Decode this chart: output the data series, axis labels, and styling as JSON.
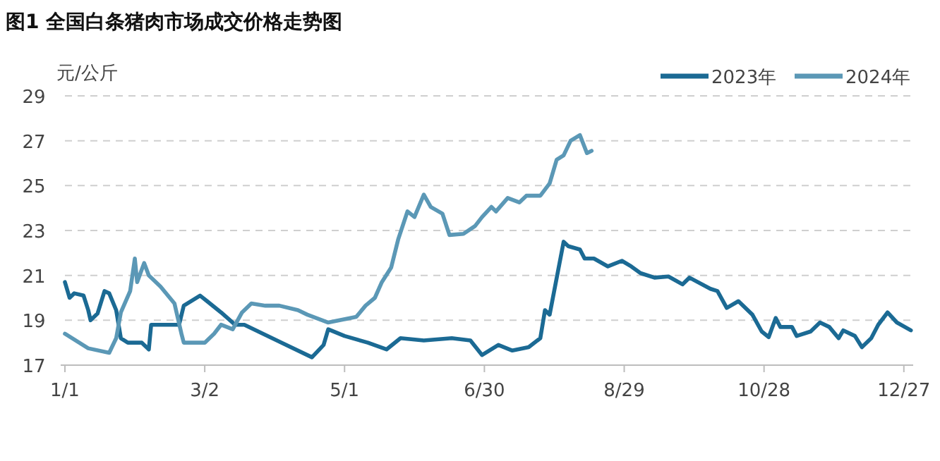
{
  "chart_data": {
    "type": "line",
    "title": "图1 全国白条猪肉市场成交价格走势图",
    "ylabel": "元/公斤",
    "xlim": [
      "--01-01",
      "--12-31"
    ],
    "xticks": [
      {
        "value": "--01-01",
        "label": "1/1"
      },
      {
        "value": "--03-02",
        "label": "3/2"
      },
      {
        "value": "--05-01",
        "label": "5/1"
      },
      {
        "value": "--06-30",
        "label": "6/30"
      },
      {
        "value": "--08-29",
        "label": "8/29"
      },
      {
        "value": "--10-28",
        "label": "10/28"
      },
      {
        "value": "--12-27",
        "label": "12/27"
      }
    ],
    "ylim": [
      17,
      29
    ],
    "yticks": [
      17,
      19,
      21,
      23,
      25,
      27,
      29
    ],
    "grid": "y",
    "legend": "top right",
    "marker": "none",
    "line_style": "solid",
    "series": [
      {
        "name": "2023年",
        "color": "#1b6a94",
        "x": [
          "--01-01",
          "--01-03",
          "--01-05",
          "--01-09",
          "--01-11",
          "--01-12",
          "--01-15",
          "--01-18",
          "--01-20",
          "--01-23",
          "--01-25",
          "--01-28",
          "--02-03",
          "--02-06",
          "--02-07",
          "--02-19",
          "--02-21",
          "--02-28",
          "--03-03",
          "--03-09",
          "--03-15",
          "--03-19",
          "--03-27",
          "--04-04",
          "--04-17",
          "--04-22",
          "--04-24",
          "--05-01",
          "--05-11",
          "--05-19",
          "--05-25",
          "--06-04",
          "--06-16",
          "--06-24",
          "--06-29",
          "--07-06",
          "--07-12",
          "--07-19",
          "--07-24",
          "--07-26",
          "--07-28",
          "--08-03",
          "--08-05",
          "--08-10",
          "--08-12",
          "--08-16",
          "--08-22",
          "--08-28",
          "--09-01",
          "--09-05",
          "--09-11",
          "--09-17",
          "--09-23",
          "--09-26",
          "--10-05",
          "--10-08",
          "--10-12",
          "--10-17",
          "--10-23",
          "--10-27",
          "--10-30",
          "--11-02",
          "--11-04",
          "--11-09",
          "--11-11",
          "--11-17",
          "--11-21",
          "--11-25",
          "--11-29",
          "--12-01",
          "--12-06",
          "--12-09",
          "--12-13",
          "--12-16",
          "--12-20",
          "--12-24",
          "--12-30"
        ],
        "values": [
          20.7,
          20.0,
          20.2,
          20.1,
          19.45,
          19.0,
          19.3,
          20.3,
          20.2,
          19.45,
          18.2,
          18.0,
          18.0,
          17.7,
          18.8,
          18.8,
          19.65,
          20.1,
          19.85,
          19.35,
          18.8,
          18.8,
          18.4,
          18.0,
          17.35,
          17.9,
          18.6,
          18.3,
          18.0,
          17.7,
          18.2,
          18.1,
          18.2,
          18.1,
          17.45,
          17.9,
          17.65,
          17.8,
          18.2,
          19.45,
          19.25,
          22.5,
          22.3,
          22.15,
          21.75,
          21.75,
          21.4,
          21.65,
          21.4,
          21.1,
          20.9,
          20.95,
          20.6,
          20.9,
          20.4,
          20.3,
          19.55,
          19.85,
          19.25,
          18.5,
          18.25,
          19.1,
          18.7,
          18.7,
          18.3,
          18.5,
          18.9,
          18.7,
          18.2,
          18.55,
          18.3,
          17.8,
          18.2,
          18.8,
          19.35,
          18.9,
          18.55
        ]
      },
      {
        "name": "2024年",
        "color": "#5b98b6",
        "x": [
          "--01-01",
          "--01-11",
          "--01-20",
          "--01-23",
          "--01-25",
          "--01-29",
          "--01-31",
          "--02-01",
          "--02-04",
          "--02-06",
          "--02-11",
          "--02-17",
          "--02-20",
          "--02-21",
          "--03-02",
          "--03-06",
          "--03-09",
          "--03-14",
          "--03-18",
          "--03-22",
          "--03-28",
          "--04-03",
          "--04-11",
          "--04-15",
          "--04-24",
          "--05-06",
          "--05-10",
          "--05-14",
          "--05-17",
          "--05-21",
          "--05-24",
          "--05-28",
          "--05-31",
          "--06-04",
          "--06-07",
          "--06-12",
          "--06-15",
          "--06-21",
          "--06-26",
          "--06-29",
          "--07-03",
          "--07-05",
          "--07-10",
          "--07-15",
          "--07-18",
          "--07-24",
          "--07-28",
          "--07-31",
          "--08-03",
          "--08-06",
          "--08-10",
          "--08-13",
          "--08-15"
        ],
        "values": [
          18.4,
          17.75,
          17.55,
          18.2,
          19.35,
          20.3,
          21.75,
          20.7,
          21.55,
          21.0,
          20.5,
          19.75,
          18.4,
          18.0,
          18.0,
          18.4,
          18.8,
          18.6,
          19.35,
          19.75,
          19.65,
          19.65,
          19.45,
          19.25,
          18.9,
          19.15,
          19.65,
          20.0,
          20.7,
          21.35,
          22.6,
          23.85,
          23.6,
          24.6,
          24.05,
          23.75,
          22.8,
          22.85,
          23.2,
          23.6,
          24.05,
          23.85,
          24.45,
          24.25,
          24.55,
          24.55,
          25.1,
          26.15,
          26.35,
          27.0,
          27.25,
          26.45,
          26.55
        ]
      }
    ]
  }
}
